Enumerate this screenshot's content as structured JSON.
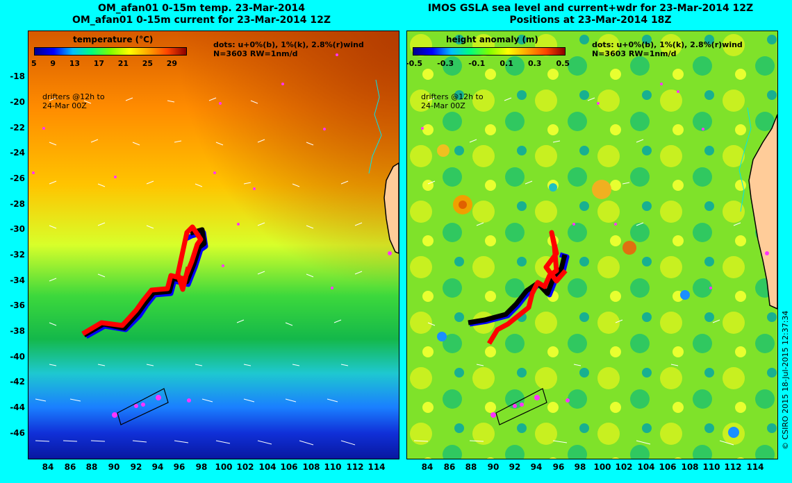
{
  "left": {
    "title_line1": "OM_afan01 0-15m temp. 23-Mar-2014",
    "title_line2": "OM_afan01 0-15m current for 23-Mar-2014 12Z",
    "colorbar_title": "temperature (°C)",
    "colorbar_ticks": [
      "5",
      "9",
      "13",
      "17",
      "21",
      "25",
      "29"
    ],
    "colorbar_colors": [
      "#00008b",
      "#0000ff",
      "#00bfff",
      "#00ff80",
      "#7fff00",
      "#ffff00",
      "#ffa500",
      "#ff4500",
      "#8b0000"
    ],
    "dots_note": "dots: u+0%(b), 1%(k), 2.8%(r)wind",
    "n_note": "N=3603 RW=1nm/d",
    "drifters_note_line1": "drifters @12h to",
    "drifters_note_line2": "24-Mar 00Z"
  },
  "right": {
    "title_line1": "IMOS GSLA sea level and current+wdr for 23-Mar-2014 12Z",
    "title_line2": "Positions at 23-Mar-2014 18Z",
    "colorbar_title": "height anomaly (m)",
    "colorbar_ticks": [
      "-0.5",
      "-0.3",
      "-0.1",
      "0.1",
      "0.3",
      "0.5"
    ],
    "colorbar_colors": [
      "#00008b",
      "#0000ff",
      "#00bfff",
      "#00ff80",
      "#7fff00",
      "#ffff00",
      "#ffa500",
      "#ff4500",
      "#8b0000"
    ],
    "dots_note": "dots: u+0%(b), 1%(k), 2.8%(r)wind",
    "n_note": "N=3603 RW=1nm/d",
    "drifters_note_line1": "drifters @12h to",
    "drifters_note_line2": "24-Mar 00Z"
  },
  "y_axis_labels": [
    "-18",
    "-20",
    "-22",
    "-24",
    "-26",
    "-28",
    "-30",
    "-32",
    "-34",
    "-36",
    "-38",
    "-40",
    "-42",
    "-44",
    "-46"
  ],
  "x_axis_labels": [
    "84",
    "86",
    "88",
    "90",
    "92",
    "94",
    "96",
    "98",
    "100",
    "102",
    "104",
    "106",
    "108",
    "110",
    "112",
    "114"
  ],
  "credit": "© CSIRO 2015   18-Jul-2015 12:37:34",
  "colors": {
    "background": "#00ffff",
    "land": "#ffcc99",
    "coast_cyan": "#00e5ee",
    "drift_red": "#ff0000",
    "drift_black": "#000000",
    "drift_blue": "#0000ff",
    "drifter_dot": "#ff33ff"
  }
}
